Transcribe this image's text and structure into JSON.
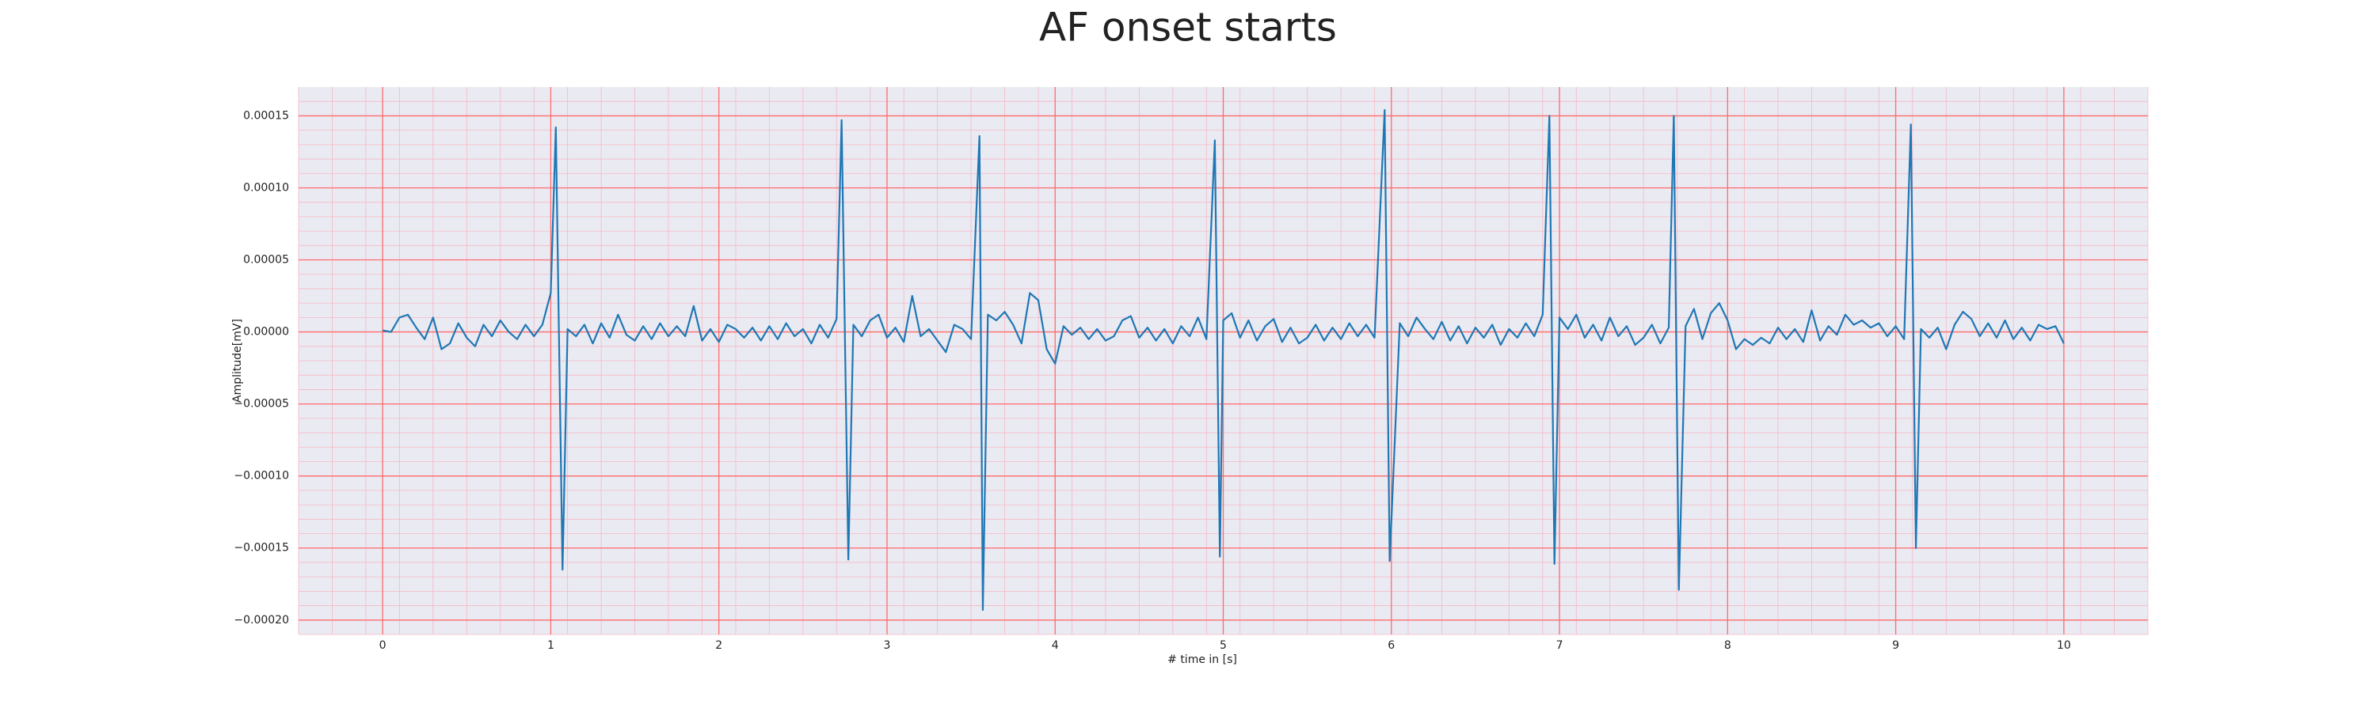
{
  "chart_data": {
    "type": "line",
    "title": "AF onset starts",
    "xlabel": "# time in [s]",
    "ylabel": "Amplitude[mV]",
    "color": "#1f77b4",
    "grid": true,
    "minor_grid": true,
    "grid_color": "#ff6b6b",
    "minor_grid_color": "#f6b8c4",
    "background": "#eaeaf2",
    "xlim": [
      -0.5,
      10.5
    ],
    "ylim": [
      -0.00021,
      0.00017
    ],
    "xticks": [
      0,
      1,
      2,
      3,
      4,
      5,
      6,
      7,
      8,
      9,
      10
    ],
    "yticks": [
      {
        "value": -0.0002,
        "label": "−0.00020"
      },
      {
        "value": -0.00015,
        "label": "−0.00015"
      },
      {
        "value": -0.0001,
        "label": "−0.00010"
      },
      {
        "value": -5e-05,
        "label": "−0.00005"
      },
      {
        "value": 0,
        "label": "0.00000"
      },
      {
        "value": 5e-05,
        "label": "0.00005"
      },
      {
        "value": 0.0001,
        "label": "0.00010"
      },
      0.00015
    ],
    "x": [
      0,
      0.05,
      0.1,
      0.15,
      0.2,
      0.25,
      0.3,
      0.35,
      0.4,
      0.45,
      0.5,
      0.55,
      0.6,
      0.65,
      0.7,
      0.75,
      0.8,
      0.85,
      0.9,
      0.95,
      1.0,
      1.03,
      1.07,
      1.1,
      1.15,
      1.2,
      1.25,
      1.3,
      1.35,
      1.4,
      1.45,
      1.5,
      1.55,
      1.6,
      1.65,
      1.7,
      1.75,
      1.8,
      1.85,
      1.9,
      1.95,
      2.0,
      2.05,
      2.1,
      2.15,
      2.2,
      2.25,
      2.3,
      2.35,
      2.4,
      2.45,
      2.5,
      2.55,
      2.6,
      2.65,
      2.7,
      2.73,
      2.77,
      2.8,
      2.85,
      2.9,
      2.95,
      3.0,
      3.05,
      3.1,
      3.15,
      3.2,
      3.25,
      3.3,
      3.35,
      3.4,
      3.45,
      3.5,
      3.55,
      3.57,
      3.6,
      3.65,
      3.7,
      3.75,
      3.8,
      3.85,
      3.9,
      3.95,
      4.0,
      4.05,
      4.1,
      4.15,
      4.2,
      4.25,
      4.3,
      4.35,
      4.4,
      4.45,
      4.5,
      4.55,
      4.6,
      4.65,
      4.7,
      4.75,
      4.8,
      4.85,
      4.9,
      4.95,
      4.98,
      5.0,
      5.05,
      5.1,
      5.15,
      5.2,
      5.25,
      5.3,
      5.35,
      5.4,
      5.45,
      5.5,
      5.55,
      5.6,
      5.65,
      5.7,
      5.75,
      5.8,
      5.85,
      5.9,
      5.96,
      5.99,
      6.05,
      6.1,
      6.15,
      6.2,
      6.25,
      6.3,
      6.35,
      6.4,
      6.45,
      6.5,
      6.55,
      6.6,
      6.65,
      6.7,
      6.75,
      6.8,
      6.85,
      6.9,
      6.94,
      6.97,
      7.0,
      7.05,
      7.1,
      7.15,
      7.2,
      7.25,
      7.3,
      7.35,
      7.4,
      7.45,
      7.5,
      7.55,
      7.6,
      7.65,
      7.68,
      7.71,
      7.75,
      7.8,
      7.85,
      7.9,
      7.95,
      8.0,
      8.05,
      8.1,
      8.15,
      8.2,
      8.25,
      8.3,
      8.35,
      8.4,
      8.45,
      8.5,
      8.55,
      8.6,
      8.65,
      8.7,
      8.75,
      8.8,
      8.85,
      8.9,
      8.95,
      9.0,
      9.05,
      9.09,
      9.12,
      9.15,
      9.2,
      9.25,
      9.3,
      9.35,
      9.4,
      9.45,
      9.5,
      9.55,
      9.6,
      9.65,
      9.7,
      9.75,
      9.8,
      9.85,
      9.9,
      9.95,
      10.0
    ],
    "values": [
      1e-06,
      0,
      1e-05,
      1.2e-05,
      3e-06,
      -5e-06,
      1e-05,
      -1.2e-05,
      -8e-06,
      6e-06,
      -4e-06,
      -1e-05,
      5e-06,
      -3e-06,
      8e-06,
      0,
      -5e-06,
      5e-06,
      -3e-06,
      5e-06,
      2.7e-05,
      0.000142,
      -0.000165,
      2e-06,
      -3e-06,
      5e-06,
      -8e-06,
      6e-06,
      -4e-06,
      1.2e-05,
      -2e-06,
      -6e-06,
      4e-06,
      -5e-06,
      6e-06,
      -3e-06,
      4e-06,
      -3e-06,
      1.8e-05,
      -6e-06,
      2e-06,
      -7e-06,
      5e-06,
      2e-06,
      -4e-06,
      3e-06,
      -6e-06,
      4e-06,
      -5e-06,
      6e-06,
      -3e-06,
      2e-06,
      -8e-06,
      5e-06,
      -4e-06,
      9e-06,
      0.000147,
      -0.000158,
      5e-06,
      -3e-06,
      8e-06,
      1.2e-05,
      -4e-06,
      3e-06,
      -7e-06,
      2.5e-05,
      -3e-06,
      2e-06,
      -6e-06,
      -1.4e-05,
      5e-06,
      2e-06,
      -5e-06,
      0.000136,
      -0.000193,
      1.2e-05,
      8e-06,
      1.4e-05,
      5e-06,
      -8e-06,
      2.7e-05,
      2.2e-05,
      -1.2e-05,
      -2.2e-05,
      4e-06,
      -2e-06,
      3e-06,
      -5e-06,
      2e-06,
      -6e-06,
      -3e-06,
      8e-06,
      1.1e-05,
      -4e-06,
      3e-06,
      -6e-06,
      2e-06,
      -8e-06,
      4e-06,
      -3e-06,
      1e-05,
      -5e-06,
      0.000133,
      -0.000156,
      8e-06,
      1.3e-05,
      -4e-06,
      8e-06,
      -6e-06,
      4e-06,
      9e-06,
      -7e-06,
      3e-06,
      -8e-06,
      -4e-06,
      5e-06,
      -6e-06,
      3e-06,
      -5e-06,
      6e-06,
      -3e-06,
      5e-06,
      -4e-06,
      0.000154,
      -0.000159,
      6e-06,
      -3e-06,
      1e-05,
      2e-06,
      -5e-06,
      7e-06,
      -6e-06,
      4e-06,
      -8e-06,
      3e-06,
      -4e-06,
      5e-06,
      -9e-06,
      2e-06,
      -4e-06,
      6e-06,
      -3e-06,
      1.2e-05,
      0.00015,
      -0.000161,
      1e-05,
      2e-06,
      1.2e-05,
      -4e-06,
      5e-06,
      -6e-06,
      1e-05,
      -3e-06,
      4e-06,
      -9e-06,
      -4e-06,
      5e-06,
      -8e-06,
      3e-06,
      0.00015,
      -0.000179,
      4e-06,
      1.6e-05,
      -5e-06,
      1.3e-05,
      2e-05,
      8e-06,
      -1.2e-05,
      -5e-06,
      -9e-06,
      -4e-06,
      -8e-06,
      3e-06,
      -5e-06,
      2e-06,
      -7e-06,
      1.5e-05,
      -6e-06,
      4e-06,
      -2e-06,
      1.2e-05,
      5e-06,
      8e-06,
      3e-06,
      6e-06,
      -3e-06,
      4e-06,
      -5e-06,
      0.000144,
      -0.00015,
      2e-06,
      -4e-06,
      3e-06,
      -1.2e-05,
      5e-06,
      1.4e-05,
      9e-06,
      -3e-06,
      6e-06,
      -4e-06,
      8e-06,
      -5e-06,
      3e-06,
      -6e-06,
      5e-06,
      2e-06,
      4e-06,
      -8e-06
    ]
  }
}
